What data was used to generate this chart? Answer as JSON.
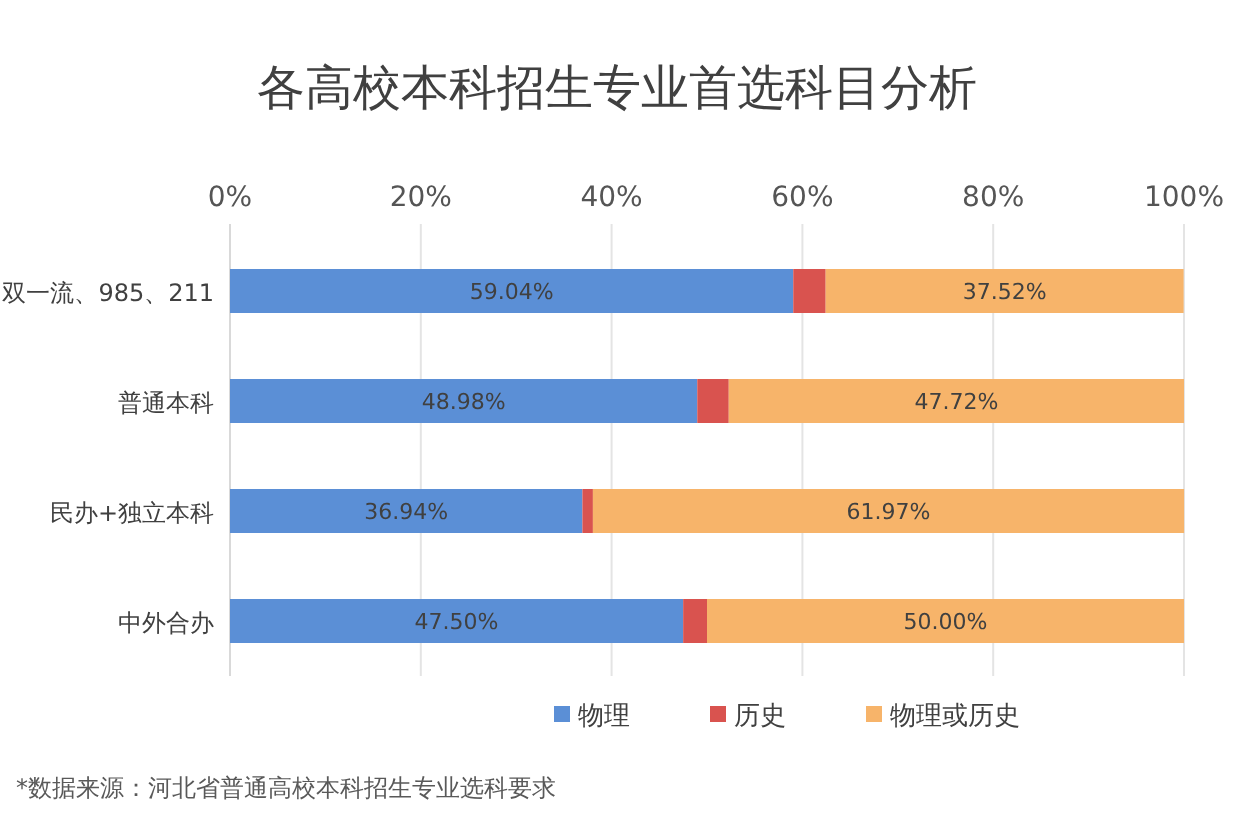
{
  "chart_data": {
    "type": "bar",
    "orientation": "horizontal",
    "stacked": true,
    "title": "各高校本科招生专业首选科目分析",
    "categories": [
      "双一流、985、211",
      "普通本科",
      "民办+独立本科",
      "中外合办"
    ],
    "series": [
      {
        "name": "物理",
        "color": "#5b8fd6",
        "values": [
          59.04,
          48.98,
          36.94,
          47.5
        ],
        "value_labels": [
          "59.04%",
          "48.98%",
          "36.94%",
          "47.50%"
        ]
      },
      {
        "name": "历史",
        "color": "#d9534f",
        "values": [
          3.4,
          3.3,
          1.1,
          2.5
        ],
        "value_labels": [
          null,
          null,
          null,
          null
        ]
      },
      {
        "name": "物理或历史",
        "color": "#f7b46a",
        "values": [
          37.52,
          47.72,
          61.97,
          50
        ],
        "value_labels": [
          "37.52%",
          "47.72%",
          "61.97%",
          "50.00%"
        ]
      }
    ],
    "xlim": [
      0,
      100
    ],
    "xticks": [
      {
        "value": 0,
        "label": "0%"
      },
      {
        "value": 20,
        "label": "20%"
      },
      {
        "value": 40,
        "label": "40%"
      },
      {
        "value": 60,
        "label": "60%"
      },
      {
        "value": 80,
        "label": "80%"
      },
      {
        "value": 100,
        "label": "100%"
      }
    ],
    "grid": "x",
    "legend": "bottom",
    "annotations": [
      "*数据来源：河北省普通高校本科招生专业选科要求"
    ]
  }
}
